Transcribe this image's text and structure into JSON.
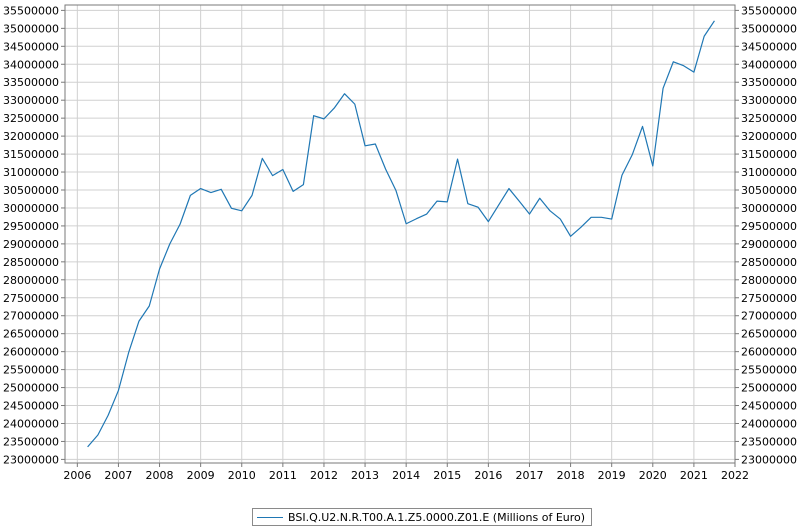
{
  "chart_data": {
    "type": "line",
    "title": "",
    "xlabel": "",
    "ylabel": "",
    "xlim": [
      2005.7,
      2022.0
    ],
    "ylim": [
      22900000,
      35650000
    ],
    "x_ticks": [
      "2006",
      "2007",
      "2008",
      "2009",
      "2010",
      "2011",
      "2012",
      "2013",
      "2014",
      "2015",
      "2016",
      "2017",
      "2018",
      "2019",
      "2020",
      "2021",
      "2022"
    ],
    "y_ticks": [
      23000000,
      23500000,
      24000000,
      24500000,
      25000000,
      25500000,
      26000000,
      26500000,
      27000000,
      27500000,
      28000000,
      28500000,
      29000000,
      29500000,
      30000000,
      30500000,
      31000000,
      31500000,
      32000000,
      32500000,
      33000000,
      33500000,
      34000000,
      34500000,
      35000000,
      35500000
    ],
    "grid": true,
    "legend": "bottom-center",
    "colors": {
      "series": "#1f77b4",
      "grid": "#d0d0d0",
      "axis": "#7a7a7a"
    },
    "series": [
      {
        "name": "BSI.Q.U2.N.R.T00.A.1.Z5.0000.Z01.E (Millions of Euro)",
        "x": [
          2006.25,
          2006.5,
          2006.75,
          2007.0,
          2007.25,
          2007.5,
          2007.75,
          2008.0,
          2008.25,
          2008.5,
          2008.75,
          2009.0,
          2009.25,
          2009.5,
          2009.75,
          2010.0,
          2010.25,
          2010.5,
          2010.75,
          2011.0,
          2011.25,
          2011.5,
          2011.75,
          2012.0,
          2012.25,
          2012.5,
          2012.75,
          2013.0,
          2013.25,
          2013.5,
          2013.75,
          2014.0,
          2014.25,
          2014.5,
          2014.75,
          2015.0,
          2015.25,
          2015.5,
          2015.75,
          2016.0,
          2016.25,
          2016.5,
          2016.75,
          2017.0,
          2017.25,
          2017.5,
          2017.75,
          2018.0,
          2018.25,
          2018.5,
          2018.75,
          2019.0,
          2019.25,
          2019.5,
          2019.75,
          2020.0,
          2020.25,
          2020.5,
          2020.75,
          2021.0,
          2021.25,
          2021.5
        ],
        "y": [
          23350000,
          23680000,
          24230000,
          24920000,
          25980000,
          26850000,
          27270000,
          28300000,
          29000000,
          29550000,
          30350000,
          30540000,
          30430000,
          30520000,
          29990000,
          29920000,
          30350000,
          31380000,
          30900000,
          31070000,
          30460000,
          30650000,
          32570000,
          32480000,
          32780000,
          33180000,
          32890000,
          31730000,
          31780000,
          31080000,
          30490000,
          29560000,
          29700000,
          29830000,
          30190000,
          30170000,
          31360000,
          30120000,
          30020000,
          29620000,
          30080000,
          30540000,
          30190000,
          29830000,
          30270000,
          29920000,
          29690000,
          29210000,
          29460000,
          29740000,
          29740000,
          29690000,
          30910000,
          31480000,
          32270000,
          31170000,
          33330000,
          34070000,
          33960000,
          33780000,
          34780000,
          35210000
        ]
      }
    ]
  },
  "legend": {
    "label": "BSI.Q.U2.N.R.T00.A.1.Z5.0000.Z01.E (Millions of Euro)"
  }
}
